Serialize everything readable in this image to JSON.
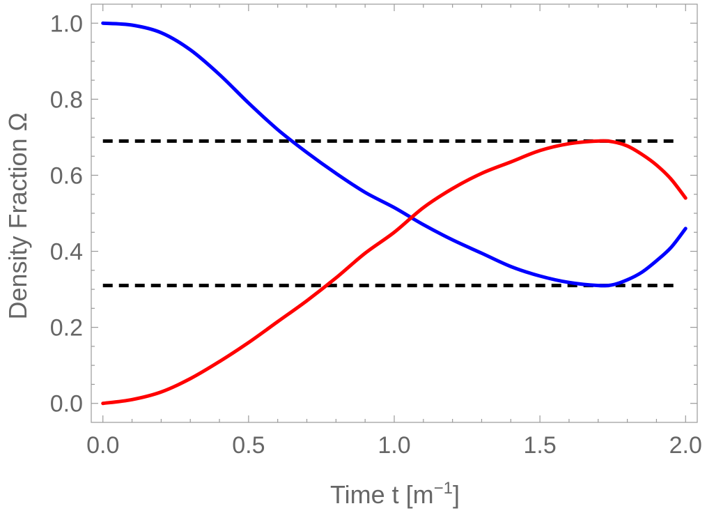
{
  "chart_data": {
    "type": "line",
    "title": "",
    "xlabel": "Time  t [m",
    "xlabel_exponent": "−1",
    "xlabel_close": "]",
    "ylabel": "Density Fraction  Ω",
    "xlim": [
      -0.04,
      2.04
    ],
    "ylim": [
      -0.05,
      1.05
    ],
    "xticks": [
      0.0,
      0.5,
      1.0,
      1.5,
      2.0
    ],
    "xtick_labels": [
      "0.0",
      "0.5",
      "1.0",
      "1.5",
      "2.0"
    ],
    "yticks": [
      0.0,
      0.2,
      0.4,
      0.6,
      0.8,
      1.0
    ],
    "ytick_labels": [
      "0.0",
      "0.2",
      "0.4",
      "0.6",
      "0.8",
      "1.0"
    ],
    "grid": false,
    "legend": "none",
    "x": [
      0.0,
      0.1,
      0.2,
      0.3,
      0.4,
      0.5,
      0.6,
      0.7,
      0.8,
      0.9,
      1.0,
      1.1,
      1.2,
      1.3,
      1.4,
      1.5,
      1.6,
      1.7,
      1.75,
      1.8,
      1.85,
      1.9,
      1.95,
      2.0
    ],
    "series": [
      {
        "color": "#0000ff",
        "values": [
          1.0,
          0.995,
          0.975,
          0.93,
          0.865,
          0.79,
          0.72,
          0.66,
          0.605,
          0.555,
          0.515,
          0.47,
          0.43,
          0.395,
          0.36,
          0.335,
          0.318,
          0.31,
          0.312,
          0.325,
          0.345,
          0.375,
          0.41,
          0.46
        ]
      },
      {
        "color": "#ff0000",
        "values": [
          0.0,
          0.01,
          0.03,
          0.065,
          0.11,
          0.16,
          0.215,
          0.27,
          0.33,
          0.395,
          0.45,
          0.515,
          0.565,
          0.605,
          0.635,
          0.665,
          0.683,
          0.69,
          0.688,
          0.677,
          0.655,
          0.627,
          0.59,
          0.54
        ]
      }
    ],
    "reference_lines": [
      {
        "y": 0.69,
        "style": "dashed",
        "color": "#000000"
      },
      {
        "y": 0.31,
        "style": "dashed",
        "color": "#000000"
      }
    ]
  }
}
